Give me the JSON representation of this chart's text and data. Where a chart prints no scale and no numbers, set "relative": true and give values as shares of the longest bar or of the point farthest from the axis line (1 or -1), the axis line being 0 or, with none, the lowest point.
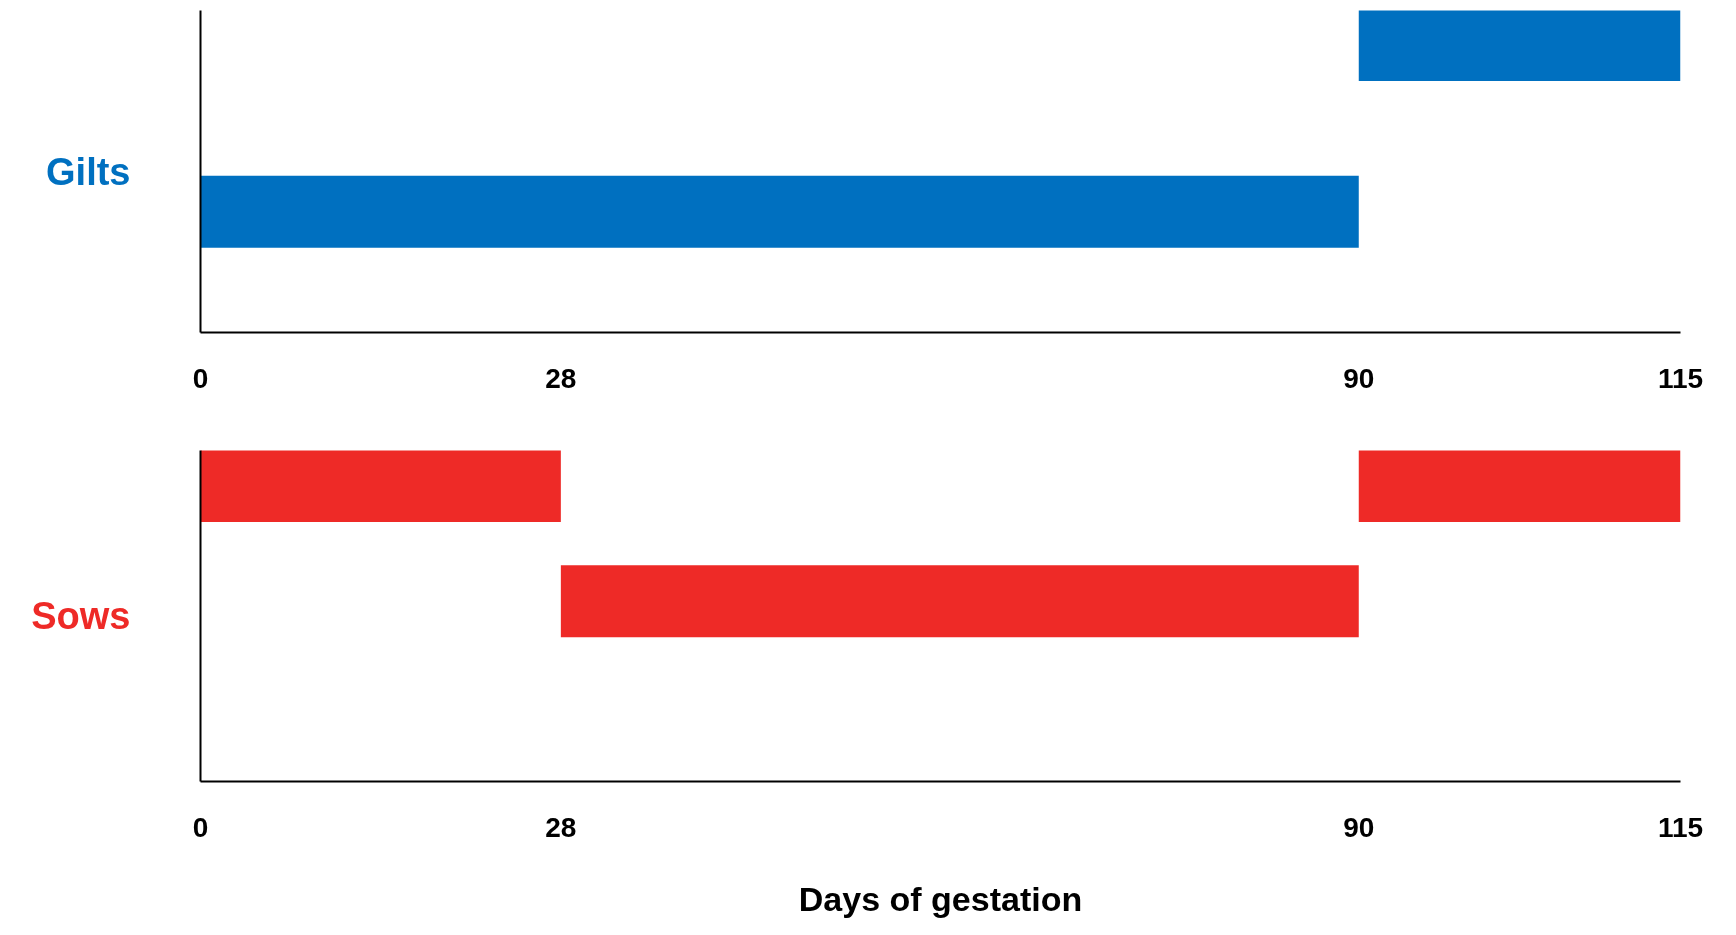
{
  "chart_data": [
    {
      "type": "step",
      "ylabel": "Gilts",
      "relative": true,
      "x": [
        0,
        90,
        115
      ],
      "xlim": [
        0,
        115
      ],
      "xticks": [
        0,
        28,
        90,
        115
      ],
      "tick_labels": "x",
      "grid": false,
      "series": [
        {
          "color": "#0070c0",
          "values": [
            0.42,
            1,
            1
          ]
        }
      ]
    },
    {
      "type": "step",
      "ylabel": "Sows",
      "xlabel": "Days of gestation",
      "relative": true,
      "x": [
        0,
        28,
        90,
        115
      ],
      "xlim": [
        0,
        115
      ],
      "xticks": [
        0,
        28,
        90,
        115
      ],
      "tick_labels": "x",
      "grid": false,
      "series": [
        {
          "color": "#ee2a27",
          "values": [
            1,
            0.61,
            1,
            1
          ]
        }
      ]
    }
  ]
}
